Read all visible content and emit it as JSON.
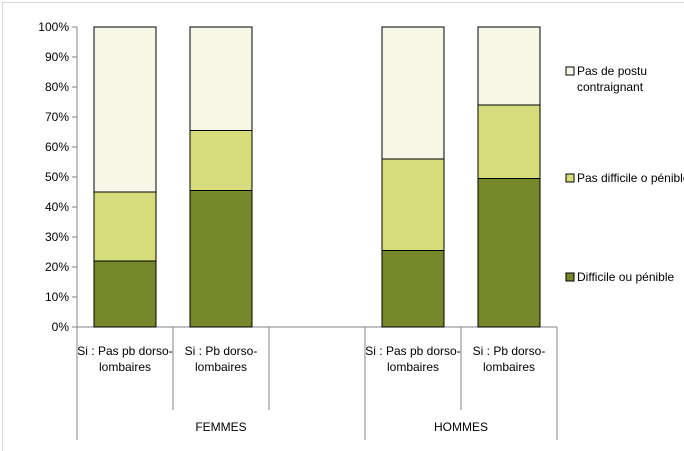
{
  "chart_data": {
    "type": "bar",
    "stacked": true,
    "categories": [
      "Si : Pas pb dorso-lombaires",
      "Si : Pb dorso-lombaires",
      null,
      "Si : Pas pb dorso-lombaires",
      "Si : Pb dorso-lombaires"
    ],
    "groups": [
      {
        "label": "FEMMES",
        "span": 3
      },
      {
        "label": "HOMMES",
        "span": 2
      }
    ],
    "series": [
      {
        "name": "Difficile ou pénible",
        "color": "#77872b",
        "values": [
          22,
          45.5,
          null,
          25.5,
          49.5
        ]
      },
      {
        "name": "Pas difficile o pénible",
        "color": "#d6dc7c",
        "values": [
          23,
          20,
          null,
          30.5,
          24.5
        ]
      },
      {
        "name": "Pas de postu contraignant",
        "color": "#f6f7e7",
        "values": [
          55,
          34.5,
          null,
          44,
          26
        ]
      }
    ],
    "ylim": [
      0,
      100
    ],
    "yticks": [
      {
        "value": 0,
        "label": "0%"
      },
      {
        "value": 10,
        "label": "10%"
      },
      {
        "value": 20,
        "label": "20%"
      },
      {
        "value": 30,
        "label": "30%"
      },
      {
        "value": 40,
        "label": "40%"
      },
      {
        "value": 50,
        "label": "50%"
      },
      {
        "value": 60,
        "label": "60%"
      },
      {
        "value": 70,
        "label": "70%"
      },
      {
        "value": 80,
        "label": "80%"
      },
      {
        "value": 90,
        "label": "90%"
      },
      {
        "value": 100,
        "label": "100%"
      }
    ],
    "legend": "right"
  }
}
